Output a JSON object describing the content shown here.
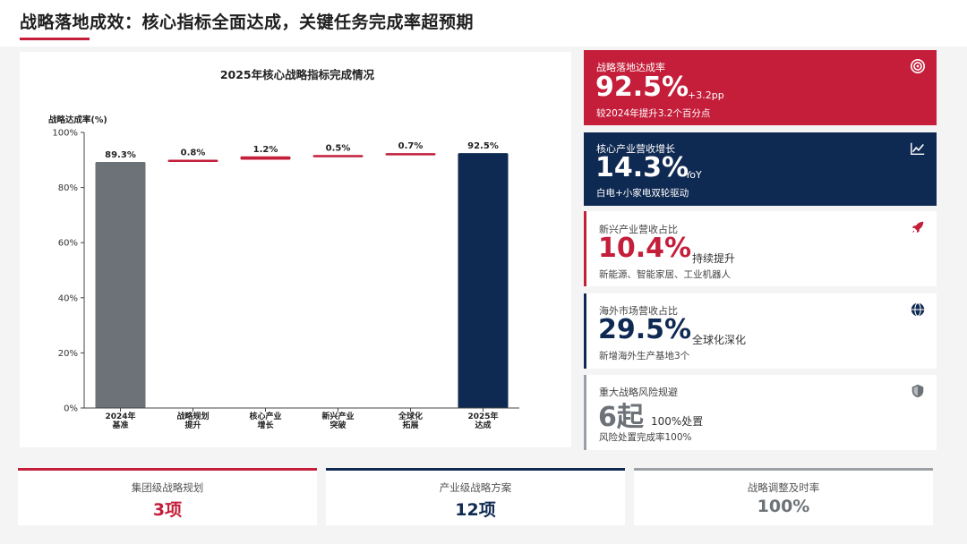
{
  "page": {
    "title": "战略落地成效：核心指标全面达成，关键任务完成率超预期"
  },
  "colors": {
    "red": "#c41e3a",
    "navy": "#0f2a52",
    "gray": "#6d7278",
    "light_gray": "#9aa0a6"
  },
  "chart_data": {
    "type": "bar",
    "title": "2025年核心战略指标完成情况",
    "ylabel": "战略达成率(%)",
    "xlabel": "",
    "ylim": [
      0,
      100
    ],
    "yticks": [
      "0%",
      "20%",
      "40%",
      "60%",
      "80%",
      "100%"
    ],
    "ytick_values": [
      0,
      20,
      40,
      60,
      80,
      100
    ],
    "style": "waterfall",
    "categories": [
      [
        "2024年",
        "基准"
      ],
      [
        "战略规划",
        "提升"
      ],
      [
        "核心产业",
        "增长"
      ],
      [
        "新兴产业",
        "突破"
      ],
      [
        "全球化",
        "拓展"
      ],
      [
        "2025年",
        "达成"
      ]
    ],
    "values": [
      89.3,
      0.8,
      1.2,
      0.5,
      0.7,
      92.5
    ],
    "data_labels": [
      "89.3%",
      "0.8%",
      "1.2%",
      "0.5%",
      "0.7%",
      "92.5%"
    ],
    "bar_kind": [
      "total",
      "increment",
      "increment",
      "increment",
      "increment",
      "total"
    ],
    "bar_colors": [
      "#6d7278",
      "#c41e3a",
      "#c41e3a",
      "#c41e3a",
      "#c41e3a",
      "#0f2a52"
    ],
    "grid": false
  },
  "kpis": [
    {
      "label": "战略落地达成率",
      "value": "92.5%",
      "sub": "+3.2pp",
      "note": "较2024年提升3.2个百分点",
      "icon": "target-icon"
    },
    {
      "label": "核心产业营收增长",
      "value": "14.3%",
      "sub": "YoY",
      "note": "白电+小家电双轮驱动",
      "icon": "trend-chart-icon"
    },
    {
      "label": "新兴产业营收占比",
      "value": "10.4%",
      "sub": "持续提升",
      "note": "新能源、智能家居、工业机器人",
      "icon": "rocket-icon"
    },
    {
      "label": "海外市场营收占比",
      "value": "29.5%",
      "sub": "全球化深化",
      "note": "新增海外生产基地3个",
      "icon": "globe-icon"
    },
    {
      "label": "重大战略风险规避",
      "value": "6起",
      "sub": "100%处置",
      "note": "风险处置完成率100%",
      "icon": "shield-icon"
    }
  ],
  "bottom_cards": [
    {
      "label": "集团级战略规划",
      "value": "3项"
    },
    {
      "label": "产业级战略方案",
      "value": "12项"
    },
    {
      "label": "战略调整及时率",
      "value": "100%"
    }
  ]
}
